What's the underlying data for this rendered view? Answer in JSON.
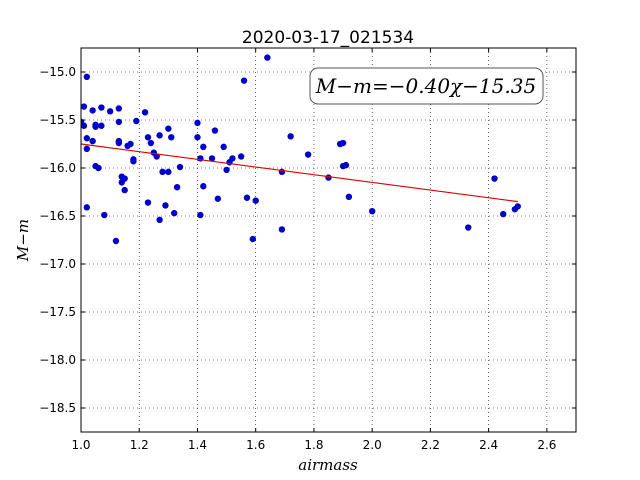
{
  "chart_data": {
    "type": "scatter",
    "title": "2020-03-17_021534",
    "xlabel": "airmass",
    "ylabel": "M−m",
    "xlim": [
      1.0,
      2.7
    ],
    "ylim": [
      -18.75,
      -14.75
    ],
    "y_inverted": true,
    "x_ticks": [
      "1.0",
      "1.2",
      "1.4",
      "1.6",
      "1.8",
      "2.0",
      "2.2",
      "2.4",
      "2.6"
    ],
    "x_tick_values": [
      1.0,
      1.2,
      1.4,
      1.6,
      1.8,
      2.0,
      2.2,
      2.4,
      2.6
    ],
    "y_ticks": [
      "−15.0",
      "−15.5",
      "−16.0",
      "−16.5",
      "−17.0",
      "−17.5",
      "−18.0",
      "−18.5"
    ],
    "y_tick_values": [
      -15.0,
      -15.5,
      -16.0,
      -16.5,
      -17.0,
      -17.5,
      -18.0,
      -18.5
    ],
    "grid": true,
    "annotation": "M−m=−0.40χ−15.35",
    "point_color": "#0000cc",
    "fit_color": "#dd0000",
    "fit": {
      "slope": -0.4,
      "intercept": -15.35,
      "x_range": [
        1.0,
        2.5
      ]
    },
    "points": [
      [
        1.0,
        -15.52
      ],
      [
        1.01,
        -15.56
      ],
      [
        1.01,
        -15.36
      ],
      [
        1.02,
        -15.05
      ],
      [
        1.02,
        -15.69
      ],
      [
        1.02,
        -15.8
      ],
      [
        1.02,
        -16.41
      ],
      [
        1.04,
        -15.4
      ],
      [
        1.04,
        -15.72
      ],
      [
        1.05,
        -15.55
      ],
      [
        1.05,
        -15.57
      ],
      [
        1.05,
        -15.98
      ],
      [
        1.06,
        -16.0
      ],
      [
        1.07,
        -15.37
      ],
      [
        1.07,
        -15.56
      ],
      [
        1.08,
        -16.49
      ],
      [
        1.1,
        -15.41
      ],
      [
        1.12,
        -16.76
      ],
      [
        1.13,
        -15.38
      ],
      [
        1.13,
        -15.52
      ],
      [
        1.13,
        -15.72
      ],
      [
        1.13,
        -15.74
      ],
      [
        1.14,
        -16.09
      ],
      [
        1.14,
        -16.15
      ],
      [
        1.15,
        -16.11
      ],
      [
        1.15,
        -16.23
      ],
      [
        1.16,
        -15.77
      ],
      [
        1.17,
        -15.75
      ],
      [
        1.18,
        -15.91
      ],
      [
        1.18,
        -15.93
      ],
      [
        1.19,
        -15.51
      ],
      [
        1.22,
        -15.42
      ],
      [
        1.23,
        -15.68
      ],
      [
        1.23,
        -16.36
      ],
      [
        1.24,
        -15.74
      ],
      [
        1.25,
        -15.84
      ],
      [
        1.26,
        -15.88
      ],
      [
        1.27,
        -15.66
      ],
      [
        1.27,
        -16.54
      ],
      [
        1.28,
        -16.04
      ],
      [
        1.29,
        -16.39
      ],
      [
        1.3,
        -15.59
      ],
      [
        1.3,
        -16.04
      ],
      [
        1.31,
        -15.68
      ],
      [
        1.32,
        -16.47
      ],
      [
        1.33,
        -16.2
      ],
      [
        1.34,
        -15.99
      ],
      [
        1.4,
        -15.53
      ],
      [
        1.4,
        -15.68
      ],
      [
        1.41,
        -16.49
      ],
      [
        1.41,
        -15.9
      ],
      [
        1.42,
        -16.19
      ],
      [
        1.42,
        -15.78
      ],
      [
        1.45,
        -15.9
      ],
      [
        1.46,
        -15.61
      ],
      [
        1.47,
        -16.32
      ],
      [
        1.49,
        -15.78
      ],
      [
        1.5,
        -16.02
      ],
      [
        1.51,
        -15.94
      ],
      [
        1.52,
        -15.9
      ],
      [
        1.55,
        -15.88
      ],
      [
        1.56,
        -15.09
      ],
      [
        1.57,
        -16.31
      ],
      [
        1.59,
        -16.74
      ],
      [
        1.6,
        -16.34
      ],
      [
        1.64,
        -14.85
      ],
      [
        1.69,
        -16.64
      ],
      [
        1.69,
        -16.04
      ],
      [
        1.72,
        -15.67
      ],
      [
        1.78,
        -15.86
      ],
      [
        1.85,
        -16.1
      ],
      [
        1.89,
        -15.75
      ],
      [
        1.9,
        -15.74
      ],
      [
        1.9,
        -15.98
      ],
      [
        1.91,
        -15.97
      ],
      [
        1.92,
        -16.3
      ],
      [
        2.0,
        -16.45
      ],
      [
        2.33,
        -16.62
      ],
      [
        2.42,
        -16.11
      ],
      [
        2.45,
        -16.48
      ],
      [
        2.49,
        -16.43
      ],
      [
        2.5,
        -16.4
      ]
    ]
  }
}
